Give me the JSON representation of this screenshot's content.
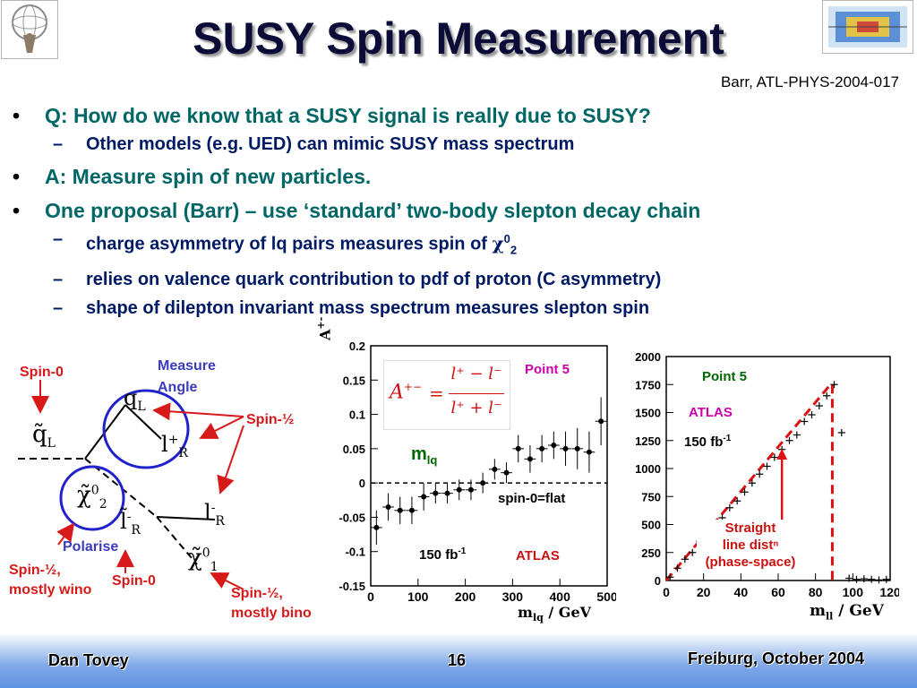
{
  "title": "SUSY Spin Measurement",
  "reference": "Barr, ATL-PHYS-2004-017",
  "bullets": {
    "b1": "Q: How do we know that a SUSY signal is really due to SUSY?",
    "b1_sub1": "Other models (e.g. UED) can mimic SUSY mass spectrum",
    "b2": "A: Measure spin of new particles.",
    "b3": "One proposal (Barr) – use ‘standard’ two-body slepton decay chain",
    "b3_sub1_pre": "charge asymmetry of lq pairs measures spin of ",
    "b3_sub1_chi": "χ",
    "b3_sub1_sup": "0",
    "b3_sub1_sub": "2",
    "b3_sub2": "relies on valence quark contribution to pdf of proton (C asymmetry)",
    "b3_sub3": "shape of dilepton invariant mass spectrum measures slepton spin"
  },
  "diagram": {
    "spin0_top": "Spin-0",
    "measure_angle_1": "Measure",
    "measure_angle_2": "Angle",
    "spin_half_top": "Spin-½",
    "polarise": "Polarise",
    "spin_half_wino_1": "Spin-½,",
    "spin_half_wino_2": "mostly wino",
    "spin0_bottom": "Spin-0",
    "spin_half_bino_1": "Spin-½,",
    "spin_half_bino_2": "mostly bino",
    "q_tilde": "q̃",
    "q_tilde_sub": "L",
    "q_label": "q",
    "q_label_sub": "L",
    "l_label": "l",
    "l_label_sup": "+",
    "l_label_sub": "R",
    "l_tilde": "l̃",
    "l_tilde_sup": "-",
    "l_tilde_sub": "R",
    "l_minus": "l",
    "l_minus_sup": "-",
    "l_minus_sub": "R",
    "chi2": "χ̃",
    "chi2_sup": "0",
    "chi2_sub": "2",
    "chi1": "χ̃",
    "chi1_sup": "0",
    "chi1_sub": "1"
  },
  "chart_asym": {
    "formula_A": "A",
    "formula_A_sup": "+−",
    "formula_eq": "=",
    "formula_num": "l⁺ − l⁻",
    "formula_den": "l⁺ + l⁻",
    "point_label": "Point 5",
    "mlq_main": "m",
    "mlq_sub": "lq",
    "flat_label": "spin-0=flat",
    "lumi_main": "150 fb",
    "lumi_sup": "-1",
    "atlas": "ATLAS",
    "ylabel_main": "A",
    "ylabel_sup": "+-",
    "xlabel_main": "m",
    "xlabel_sub": "lq",
    "xlabel_unit": " / GeV"
  },
  "chart_mll": {
    "point_label": "Point 5",
    "atlas": "ATLAS",
    "lumi_main": "150 fb",
    "lumi_sup": "-1",
    "straight_1": "Straight",
    "straight_2": "line distⁿ",
    "straight_3": "(phase-space)",
    "xlabel_main": "m",
    "xlabel_sub": "ll",
    "xlabel_unit": " / GeV"
  },
  "footer": {
    "left": "Dan Tovey",
    "center": "16",
    "right": "Freiburg, October 2004"
  },
  "chart_data": [
    {
      "type": "scatter",
      "ylabel": "A+-",
      "xlabel": "mlq / GeV",
      "xlim": [
        0,
        500
      ],
      "ylim": [
        -0.15,
        0.2
      ],
      "xticks": [
        0,
        100,
        200,
        300,
        400,
        500
      ],
      "yticks": [
        -0.15,
        -0.1,
        -0.05,
        0,
        0.05,
        0.1,
        0.15,
        0.2
      ],
      "reference_line": {
        "y": 0,
        "style": "dashed",
        "label": "spin-0=flat"
      },
      "series": [
        {
          "x": [
            12,
            37,
            62,
            87,
            112,
            137,
            162,
            187,
            212,
            237,
            262,
            287,
            312,
            337,
            362,
            387,
            412,
            437,
            462,
            487
          ],
          "y": [
            -0.065,
            -0.035,
            -0.04,
            -0.04,
            -0.02,
            -0.015,
            -0.015,
            -0.01,
            -0.01,
            0.0,
            0.02,
            0.015,
            0.05,
            0.035,
            0.05,
            0.055,
            0.05,
            0.05,
            0.045,
            0.09
          ],
          "err": [
            0.025,
            0.02,
            0.02,
            0.02,
            0.02,
            0.015,
            0.015,
            0.015,
            0.015,
            0.015,
            0.015,
            0.015,
            0.02,
            0.02,
            0.02,
            0.02,
            0.025,
            0.03,
            0.03,
            0.035
          ]
        }
      ],
      "annotations": [
        "Point 5",
        "150 fb -1",
        "ATLAS"
      ]
    },
    {
      "type": "scatter",
      "xlabel": "mll / GeV",
      "xlim": [
        0,
        120
      ],
      "ylim": [
        0,
        2000
      ],
      "xticks": [
        0,
        20,
        40,
        60,
        80,
        100,
        120
      ],
      "yticks": [
        0,
        250,
        500,
        750,
        1000,
        1250,
        1500,
        1750,
        2000
      ],
      "series": [
        {
          "x": [
            2,
            6,
            10,
            14,
            18,
            22,
            26,
            30,
            34,
            38,
            42,
            46,
            50,
            54,
            58,
            62,
            66,
            70,
            74,
            78,
            82,
            86,
            90,
            94,
            98,
            102,
            106,
            110,
            114,
            118
          ],
          "y": [
            30,
            110,
            190,
            250,
            350,
            420,
            480,
            560,
            650,
            710,
            790,
            870,
            950,
            1020,
            1100,
            1170,
            1250,
            1300,
            1420,
            1480,
            1560,
            1650,
            1750,
            1320,
            20,
            10,
            15,
            10,
            5,
            10
          ]
        }
      ],
      "fit_line": {
        "x": [
          0,
          88
        ],
        "y": [
          0,
          1750
        ],
        "style": "dashed-red"
      },
      "edge": {
        "x": 89,
        "style": "dashed-red"
      },
      "annotations": [
        "Point 5",
        "ATLAS",
        "150 fb -1",
        "Straight line distⁿ (phase-space)"
      ]
    }
  ]
}
